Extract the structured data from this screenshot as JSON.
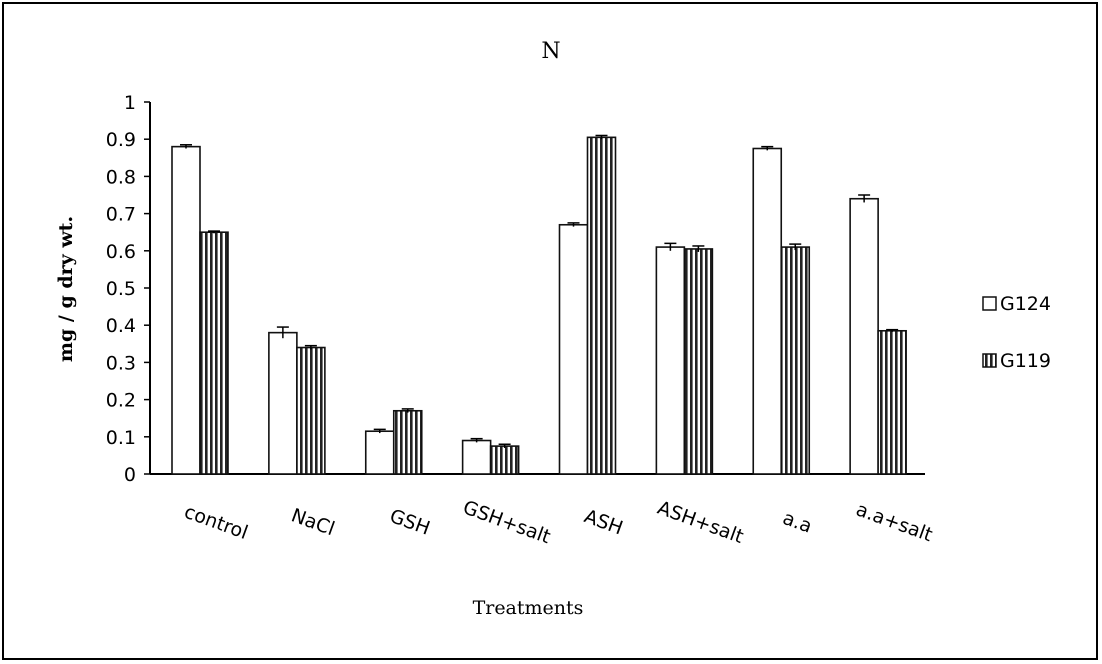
{
  "chart_data": {
    "type": "bar",
    "title": "N",
    "xlabel": "Treatments",
    "ylabel": "mg / g dry wt.",
    "ylim": [
      0,
      1
    ],
    "yticks": [
      "0",
      "0.1",
      "0.2",
      "0.3",
      "0.4",
      "0.5",
      "0.6",
      "0.7",
      "0.8",
      "0.9",
      "1"
    ],
    "categories": [
      "control",
      "NaCl",
      "GSH",
      "GSH+salt",
      "ASH",
      "ASH+salt",
      "a.a",
      "a.a+salt"
    ],
    "series": [
      {
        "name": "G124",
        "pattern": "open",
        "values": [
          0.88,
          0.38,
          0.115,
          0.09,
          0.67,
          0.61,
          0.875,
          0.74
        ],
        "errors": [
          0.005,
          0.015,
          0.005,
          0.005,
          0.005,
          0.01,
          0.005,
          0.01
        ]
      },
      {
        "name": "G119",
        "pattern": "vertical-stripes",
        "values": [
          0.65,
          0.34,
          0.17,
          0.075,
          0.905,
          0.605,
          0.61,
          0.385
        ],
        "errors": [
          0.003,
          0.005,
          0.005,
          0.005,
          0.005,
          0.008,
          0.008,
          0.003
        ]
      }
    ],
    "legend_position": "right",
    "grid": false
  }
}
